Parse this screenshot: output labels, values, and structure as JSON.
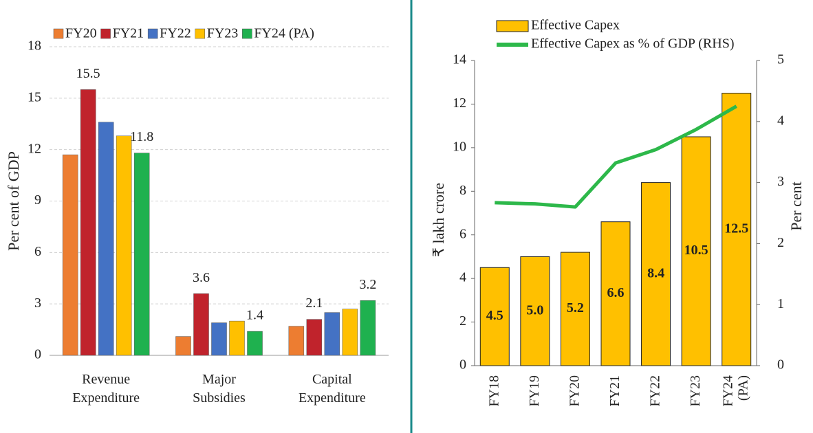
{
  "chart_data": [
    {
      "type": "grouped_bar",
      "y_label": "Per cent of GDP",
      "categories": [
        [
          "Revenue",
          "Expenditure"
        ],
        [
          "Major",
          "Subsidies"
        ],
        [
          "Capital",
          "Expenditure"
        ]
      ],
      "series": [
        {
          "name": "FY20",
          "color": "#ed7d31",
          "values": [
            11.7,
            1.1,
            1.7
          ],
          "show_labels": false
        },
        {
          "name": "FY21",
          "color": "#c0232c",
          "values": [
            15.5,
            3.6,
            2.1
          ],
          "show_labels": true
        },
        {
          "name": "FY22",
          "color": "#4472c4",
          "values": [
            13.6,
            1.9,
            2.5
          ],
          "show_labels": false
        },
        {
          "name": "FY23",
          "color": "#ffc000",
          "values": [
            12.8,
            2.0,
            2.7
          ],
          "show_labels": false
        },
        {
          "name": "FY24 (PA)",
          "color": "#1fb14f",
          "values": [
            11.8,
            1.4,
            3.2
          ],
          "show_labels": true
        }
      ],
      "ylim": [
        0,
        18
      ],
      "yticks": [
        0,
        3,
        6,
        9,
        12,
        15,
        18
      ],
      "grid": true,
      "legend": "top"
    },
    {
      "type": "bar_line",
      "y_label": "₹ lakh crore",
      "y2_label": "Per cent",
      "categories": [
        [
          "FY18"
        ],
        [
          "FY19"
        ],
        [
          "FY20"
        ],
        [
          "FY21"
        ],
        [
          "FY22"
        ],
        [
          "FY23"
        ],
        [
          "FY24",
          "(PA)"
        ]
      ],
      "series": [
        {
          "name": "Effective Capex",
          "color": "#ffc000",
          "kind": "bar",
          "values": [
            4.5,
            5.0,
            5.2,
            6.6,
            8.4,
            10.5,
            12.5
          ],
          "value_labels": [
            "4.5",
            "5.0",
            "5.2",
            "6.6",
            "8.4",
            "10.5",
            "12.5"
          ]
        },
        {
          "name": "Effective Capex as % of GDP (RHS)",
          "color": "#2db84a",
          "kind": "line",
          "axis": "y2",
          "values": [
            2.67,
            2.65,
            2.6,
            3.32,
            3.54,
            3.87,
            4.25
          ]
        }
      ],
      "ylim": [
        0,
        14
      ],
      "yticks": [
        0,
        2,
        4,
        6,
        8,
        10,
        12,
        14
      ],
      "y2lim": [
        0,
        5
      ],
      "y2ticks": [
        0,
        1,
        2,
        3,
        4,
        5
      ],
      "legend": "top"
    }
  ]
}
